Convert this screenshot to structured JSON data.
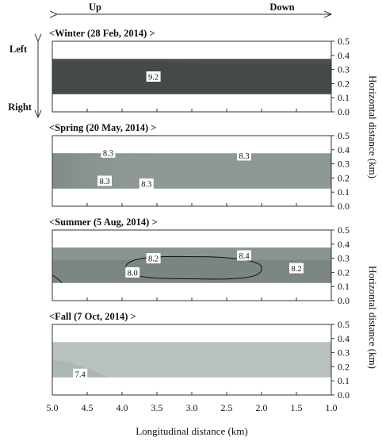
{
  "chart_data": {
    "type": "contour",
    "direction": {
      "up": "Up",
      "down": "Down",
      "left": "Left",
      "right": "Right"
    },
    "xlabel": "Longitudinal distance (km)",
    "ylabel": "Horizontal distance (km)",
    "xlim": [
      5.0,
      1.0
    ],
    "ylim": [
      0.0,
      0.5
    ],
    "x_ticks": [
      "5.0",
      "4.5",
      "4.0",
      "3.5",
      "3.0",
      "2.5",
      "2.0",
      "1.5",
      "1.0"
    ],
    "y_ticks": [
      "0.0",
      "0.1",
      "0.2",
      "0.3",
      "0.4",
      "0.5"
    ],
    "channel_band": [
      0.125,
      0.375
    ],
    "panels": [
      {
        "title": "<Winter (28 Feb, 2014) >",
        "fill": "#454a49",
        "contour_labels": [
          {
            "text": "9.2",
            "x": 3.55,
            "y": 0.25
          }
        ]
      },
      {
        "title": "<Spring (20 May, 2014) >",
        "fill": "#8e9894",
        "contour_labels": [
          {
            "text": "8.3",
            "x": 4.2,
            "y": 0.38
          },
          {
            "text": "8.3",
            "x": 2.25,
            "y": 0.36
          },
          {
            "text": "8.3",
            "x": 4.25,
            "y": 0.18
          },
          {
            "text": "8.3",
            "x": 3.65,
            "y": 0.16
          }
        ]
      },
      {
        "title": "<Summer (5 Aug, 2014) >",
        "fill": "#7b8581",
        "contour_labels": [
          {
            "text": "8.2",
            "x": 3.55,
            "y": 0.3
          },
          {
            "text": "8.4",
            "x": 2.25,
            "y": 0.32
          },
          {
            "text": "8.0",
            "x": 3.85,
            "y": 0.2
          },
          {
            "text": "8.2",
            "x": 1.5,
            "y": 0.23
          }
        ]
      },
      {
        "title": "<Fall (7 Oct, 2014) >",
        "fill": "#b8c1be",
        "contour_labels": [
          {
            "text": "7.4",
            "x": 4.6,
            "y": 0.15
          }
        ]
      }
    ]
  }
}
